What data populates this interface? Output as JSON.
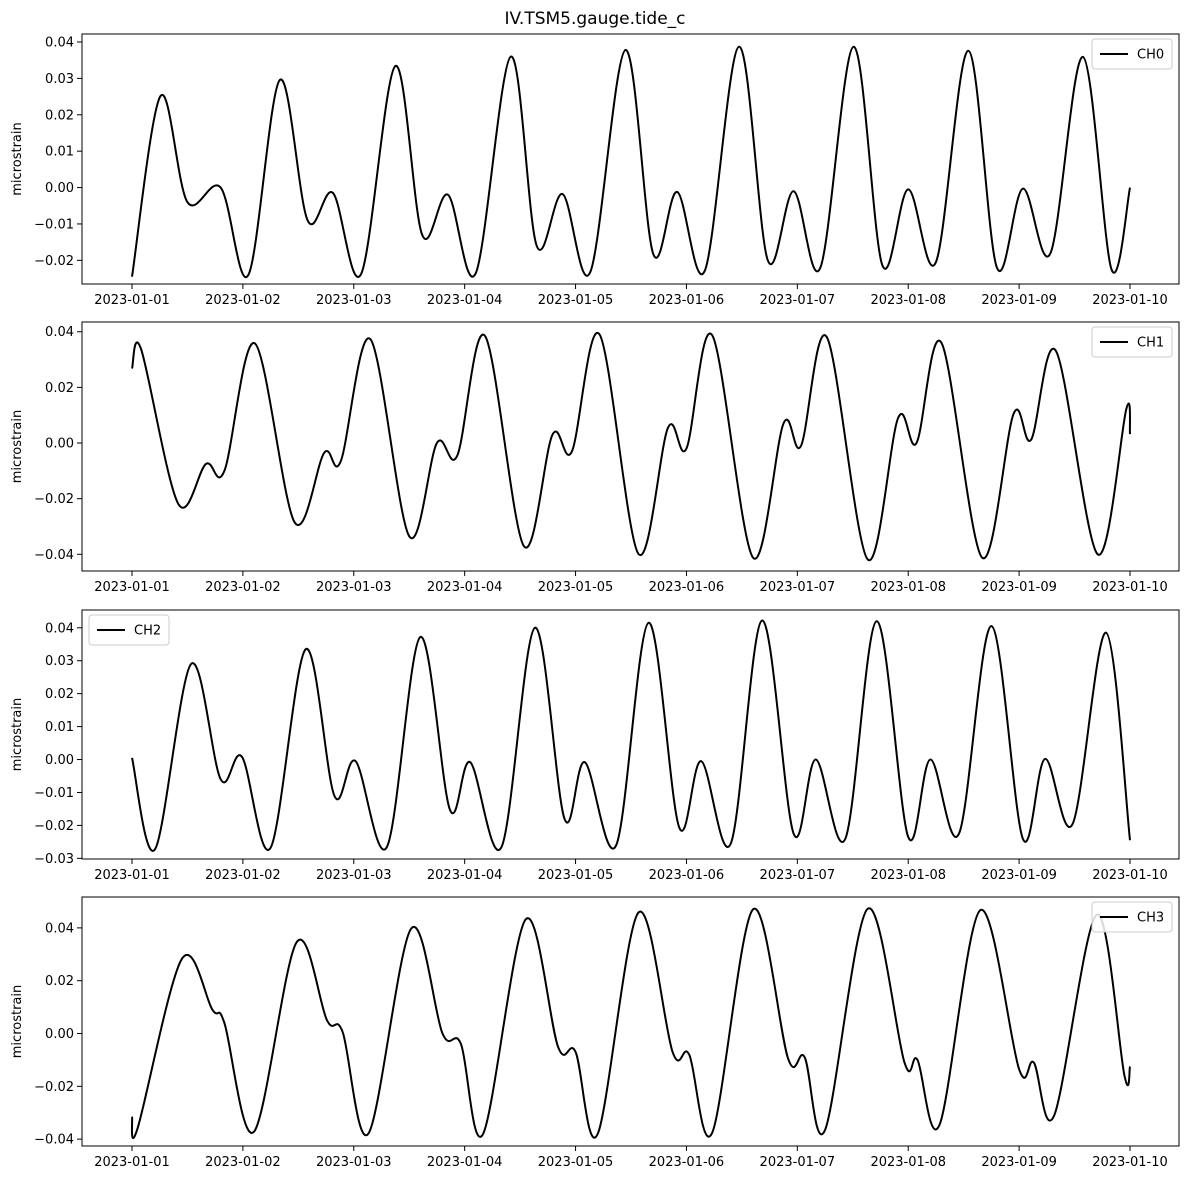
{
  "figure": {
    "title": "IV.TSM5.gauge.tide_c"
  },
  "chart_data": [
    {
      "type": "line",
      "ylabel": "microstrain",
      "x_range": [
        "2023-01-01",
        "2023-01-10"
      ],
      "x_ticks": [
        "2023-01-01",
        "2023-01-02",
        "2023-01-03",
        "2023-01-04",
        "2023-01-05",
        "2023-01-06",
        "2023-01-07",
        "2023-01-08",
        "2023-01-09",
        "2023-01-10"
      ],
      "ylim": [
        -0.0265,
        0.0422
      ],
      "y_ticks": [
        -0.02,
        -0.01,
        0.0,
        0.01,
        0.02,
        0.03,
        0.04
      ],
      "y_tick_labels": [
        "−0.02",
        "−0.01",
        "0.00",
        "0.01",
        "0.02",
        "0.03",
        "0.04"
      ],
      "legend": {
        "position": "top-right"
      },
      "series": [
        {
          "name": "CH0",
          "color": "#000000",
          "points": [
            [
              "2023-01-01 00:00",
              -0.0245
            ],
            [
              "2023-01-01 06:12",
              0.0252
            ],
            [
              "2023-01-01 12:00",
              -0.004
            ],
            [
              "2023-01-01 19:12",
              0.0
            ],
            [
              "2023-01-02 01:12",
              -0.024
            ],
            [
              "2023-01-02 08:00",
              0.0296
            ],
            [
              "2023-01-02 14:00",
              -0.009
            ],
            [
              "2023-01-02 19:30",
              -0.0015
            ],
            [
              "2023-01-03 01:36",
              -0.0237
            ],
            [
              "2023-01-03 09:00",
              0.0334
            ],
            [
              "2023-01-03 14:48",
              -0.013
            ],
            [
              "2023-01-03 20:24",
              -0.002
            ],
            [
              "2023-01-04 02:24",
              -0.0235
            ],
            [
              "2023-01-04 10:00",
              0.036
            ],
            [
              "2023-01-04 15:36",
              -0.016
            ],
            [
              "2023-01-04 21:12",
              -0.0018
            ],
            [
              "2023-01-05 03:12",
              -0.0232
            ],
            [
              "2023-01-05 10:48",
              0.0378
            ],
            [
              "2023-01-05 16:48",
              -0.0182
            ],
            [
              "2023-01-05 22:00",
              -0.0012
            ],
            [
              "2023-01-06 04:00",
              -0.0228
            ],
            [
              "2023-01-06 11:24",
              0.0387
            ],
            [
              "2023-01-06 17:36",
              -0.02
            ],
            [
              "2023-01-06 23:12",
              -0.001
            ],
            [
              "2023-01-07 05:00",
              -0.022
            ],
            [
              "2023-01-07 12:12",
              0.0387
            ],
            [
              "2023-01-07 18:24",
              -0.0213
            ],
            [
              "2023-01-08 00:00",
              -0.0005
            ],
            [
              "2023-01-08 06:00",
              -0.0205
            ],
            [
              "2023-01-08 13:00",
              0.0376
            ],
            [
              "2023-01-08 19:12",
              -0.022
            ],
            [
              "2023-01-09 00:48",
              -0.0003
            ],
            [
              "2023-01-09 06:48",
              -0.018
            ],
            [
              "2023-01-09 13:48",
              0.0359
            ],
            [
              "2023-01-09 20:00",
              -0.0225
            ],
            [
              "2023-01-10 00:00",
              0.0
            ]
          ]
        }
      ]
    },
    {
      "type": "line",
      "ylabel": "microstrain",
      "x_range": [
        "2023-01-01",
        "2023-01-10"
      ],
      "x_ticks": [
        "2023-01-01",
        "2023-01-02",
        "2023-01-03",
        "2023-01-04",
        "2023-01-05",
        "2023-01-06",
        "2023-01-07",
        "2023-01-08",
        "2023-01-09",
        "2023-01-10"
      ],
      "ylim": [
        -0.046,
        0.0435
      ],
      "y_ticks": [
        -0.04,
        -0.02,
        0.0,
        0.02,
        0.04
      ],
      "y_tick_labels": [
        "−0.04",
        "−0.02",
        "0.00",
        "0.02",
        "0.04"
      ],
      "legend": {
        "position": "top-right"
      },
      "series": [
        {
          "name": "CH1",
          "color": "#000000",
          "points": [
            [
              "2023-01-01 00:00",
              0.0268
            ],
            [
              "2023-01-01 02:00",
              0.0336
            ],
            [
              "2023-01-01 10:00",
              -0.0218
            ],
            [
              "2023-01-01 16:00",
              -0.0075
            ],
            [
              "2023-01-01 20:00",
              -0.01
            ],
            [
              "2023-01-02 02:36",
              0.0358
            ],
            [
              "2023-01-02 11:12",
              -0.0285
            ],
            [
              "2023-01-02 17:36",
              -0.0035
            ],
            [
              "2023-01-02 21:12",
              -0.0065
            ],
            [
              "2023-01-03 03:36",
              0.0373
            ],
            [
              "2023-01-03 12:00",
              -0.0335
            ],
            [
              "2023-01-03 18:00",
              0.0
            ],
            [
              "2023-01-03 22:24",
              -0.0045
            ],
            [
              "2023-01-04 04:24",
              0.0385
            ],
            [
              "2023-01-04 12:48",
              -0.037
            ],
            [
              "2023-01-04 19:00",
              0.003
            ],
            [
              "2023-01-04 23:12",
              -0.003
            ],
            [
              "2023-01-05 05:12",
              0.039
            ],
            [
              "2023-01-05 13:36",
              -0.0398
            ],
            [
              "2023-01-05 20:00",
              0.0055
            ],
            [
              "2023-01-06 00:00",
              -0.002
            ],
            [
              "2023-01-06 05:36",
              0.0387
            ],
            [
              "2023-01-06 14:24",
              -0.0412
            ],
            [
              "2023-01-06 21:00",
              0.007
            ],
            [
              "2023-01-07 00:48",
              -0.001
            ],
            [
              "2023-01-07 06:24",
              0.038
            ],
            [
              "2023-01-07 15:12",
              -0.0418
            ],
            [
              "2023-01-07 21:48",
              0.009
            ],
            [
              "2023-01-08 01:48",
              0.0
            ],
            [
              "2023-01-08 07:12",
              0.036
            ],
            [
              "2023-01-08 16:00",
              -0.0412
            ],
            [
              "2023-01-08 22:48",
              0.0105
            ],
            [
              "2023-01-09 02:36",
              0.0012
            ],
            [
              "2023-01-09 08:00",
              0.033
            ],
            [
              "2023-01-09 17:00",
              -0.04
            ],
            [
              "2023-01-09 23:12",
              0.0122
            ],
            [
              "2023-01-10 00:00",
              0.0032
            ]
          ]
        }
      ]
    },
    {
      "type": "line",
      "ylabel": "microstrain",
      "x_range": [
        "2023-01-01",
        "2023-01-10"
      ],
      "x_ticks": [
        "2023-01-01",
        "2023-01-02",
        "2023-01-03",
        "2023-01-04",
        "2023-01-05",
        "2023-01-06",
        "2023-01-07",
        "2023-01-08",
        "2023-01-09",
        "2023-01-10"
      ],
      "ylim": [
        -0.0302,
        0.0454
      ],
      "y_ticks": [
        -0.03,
        -0.02,
        -0.01,
        0.0,
        0.01,
        0.02,
        0.03,
        0.04
      ],
      "y_tick_labels": [
        "−0.03",
        "−0.02",
        "−0.01",
        "0.00",
        "0.01",
        "0.02",
        "0.03",
        "0.04"
      ],
      "legend": {
        "position": "top-left"
      },
      "series": [
        {
          "name": "CH2",
          "color": "#000000",
          "points": [
            [
              "2023-01-01 00:00",
              0.0005
            ],
            [
              "2023-01-01 05:00",
              -0.0272
            ],
            [
              "2023-01-01 12:48",
              0.029
            ],
            [
              "2023-01-01 19:12",
              -0.006
            ],
            [
              "2023-01-01 23:48",
              0.0008
            ],
            [
              "2023-01-02 06:00",
              -0.0268
            ],
            [
              "2023-01-02 13:36",
              0.0335
            ],
            [
              "2023-01-02 19:48",
              -0.011
            ],
            [
              "2023-01-03 00:24",
              -0.0005
            ],
            [
              "2023-01-03 07:12",
              -0.0265
            ],
            [
              "2023-01-03 14:24",
              0.0372
            ],
            [
              "2023-01-03 20:48",
              -0.0152
            ],
            [
              "2023-01-04 01:12",
              -0.0008
            ],
            [
              "2023-01-04 08:00",
              -0.0265
            ],
            [
              "2023-01-04 15:12",
              0.04
            ],
            [
              "2023-01-04 21:36",
              -0.018
            ],
            [
              "2023-01-05 02:00",
              -0.0008
            ],
            [
              "2023-01-05 08:48",
              -0.026
            ],
            [
              "2023-01-05 15:48",
              0.0415
            ],
            [
              "2023-01-05 22:24",
              -0.0205
            ],
            [
              "2023-01-06 03:12",
              -0.0005
            ],
            [
              "2023-01-06 09:36",
              -0.0255
            ],
            [
              "2023-01-06 16:24",
              0.0422
            ],
            [
              "2023-01-06 23:12",
              -0.0225
            ],
            [
              "2023-01-07 04:00",
              0.0
            ],
            [
              "2023-01-07 10:24",
              -0.024
            ],
            [
              "2023-01-07 17:12",
              0.042
            ],
            [
              "2023-01-08 00:00",
              -0.0235
            ],
            [
              "2023-01-08 04:48",
              0.0
            ],
            [
              "2023-01-08 11:00",
              -0.0225
            ],
            [
              "2023-01-08 18:00",
              0.0405
            ],
            [
              "2023-01-09 00:48",
              -0.024
            ],
            [
              "2023-01-09 05:36",
              0.0002
            ],
            [
              "2023-01-09 11:36",
              -0.0195
            ],
            [
              "2023-01-09 18:48",
              0.0385
            ],
            [
              "2023-01-10 00:00",
              -0.0245
            ]
          ]
        }
      ]
    },
    {
      "type": "line",
      "ylabel": "microstrain",
      "x_range": [
        "2023-01-01",
        "2023-01-10"
      ],
      "x_ticks": [
        "2023-01-01",
        "2023-01-02",
        "2023-01-03",
        "2023-01-04",
        "2023-01-05",
        "2023-01-06",
        "2023-01-07",
        "2023-01-08",
        "2023-01-09",
        "2023-01-10"
      ],
      "ylim": [
        -0.0426,
        0.0517
      ],
      "y_ticks": [
        -0.04,
        -0.02,
        0.0,
        0.02,
        0.04
      ],
      "y_tick_labels": [
        "−0.04",
        "−0.02",
        "0.00",
        "0.02",
        "0.04"
      ],
      "legend": {
        "position": "top-right"
      },
      "series": [
        {
          "name": "CH3",
          "color": "#000000",
          "points": [
            [
              "2023-01-01 00:00",
              -0.0315
            ],
            [
              "2023-01-01 01:12",
              -0.036
            ],
            [
              "2023-01-01 10:48",
              0.0283
            ],
            [
              "2023-01-01 17:24",
              0.009
            ],
            [
              "2023-01-01 20:00",
              0.004
            ],
            [
              "2023-01-02 02:24",
              -0.0372
            ],
            [
              "2023-01-02 11:36",
              0.0345
            ],
            [
              "2023-01-02 18:12",
              0.005
            ],
            [
              "2023-01-02 21:36",
              0.0005
            ],
            [
              "2023-01-03 03:12",
              -0.0378
            ],
            [
              "2023-01-03 12:24",
              0.0397
            ],
            [
              "2023-01-03 19:12",
              0.0
            ],
            [
              "2023-01-03 23:12",
              -0.004
            ],
            [
              "2023-01-04 04:00",
              -0.038
            ],
            [
              "2023-01-04 13:12",
              0.0432
            ],
            [
              "2023-01-04 20:12",
              -0.005
            ],
            [
              "2023-01-05 00:00",
              -0.007
            ],
            [
              "2023-01-05 04:48",
              -0.038
            ],
            [
              "2023-01-05 13:36",
              0.0458
            ],
            [
              "2023-01-05 21:00",
              -0.007
            ],
            [
              "2023-01-06 00:36",
              -0.008
            ],
            [
              "2023-01-06 05:36",
              -0.0375
            ],
            [
              "2023-01-06 14:24",
              0.047
            ],
            [
              "2023-01-06 22:00",
              -0.0095
            ],
            [
              "2023-01-07 01:36",
              -0.009
            ],
            [
              "2023-01-07 06:00",
              -0.0365
            ],
            [
              "2023-01-07 15:12",
              0.0472
            ],
            [
              "2023-01-07 23:12",
              -0.011
            ],
            [
              "2023-01-08 02:00",
              -0.01
            ],
            [
              "2023-01-08 06:48",
              -0.0345
            ],
            [
              "2023-01-08 15:36",
              0.0467
            ],
            [
              "2023-01-09 00:00",
              -0.0135
            ],
            [
              "2023-01-09 03:12",
              -0.011
            ],
            [
              "2023-01-09 07:36",
              -0.031
            ],
            [
              "2023-01-09 16:48",
              0.045
            ],
            [
              "2023-01-09 22:48",
              -0.016
            ],
            [
              "2023-01-10 00:00",
              -0.0125
            ]
          ]
        }
      ]
    }
  ]
}
